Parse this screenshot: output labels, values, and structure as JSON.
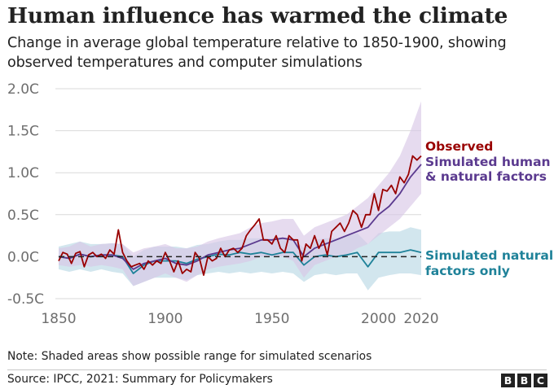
{
  "title": "Human influence has warmed the climate",
  "subtitle": "Change in average global temperature relative to 1850-1900, showing observed temperatures and computer simulations",
  "note": "Note: Shaded areas show possible range for simulated scenarios",
  "source": "Source: IPCC, 2021: Summary for Policymakers",
  "logo": [
    "B",
    "B",
    "C"
  ],
  "chart_data": {
    "type": "line",
    "title": "Human influence has warmed the climate",
    "subtitle": "Change in average global temperature relative to 1850-1900, showing observed temperatures and computer simulations",
    "xlim": [
      1850,
      2020
    ],
    "ylim": [
      -0.5,
      2.0
    ],
    "x_ticks": [
      1850,
      1900,
      1950,
      2000,
      2020
    ],
    "x_tick_labels": [
      "1850",
      "1900",
      "1950",
      "2000",
      "2020"
    ],
    "y_ticks": [
      -0.5,
      0.0,
      0.5,
      1.0,
      1.5,
      2.0
    ],
    "y_tick_labels": [
      "-0.5C",
      "0.0C",
      "0.5C",
      "1.0C",
      "1.5C",
      "2.0C"
    ],
    "grid": "horizontal",
    "reference_line": {
      "y": 0,
      "style": "dashed"
    },
    "colors": {
      "observed": "#990000",
      "human": "#5b3a8f",
      "human_band": "#d9c8e6",
      "natural": "#1f8299",
      "natural_band": "#c3dde8",
      "grid": "#d9d9d9",
      "axis_text": "#6e6e6e"
    },
    "series": [
      {
        "name": "Observed",
        "color": "#990000",
        "x": [
          1850,
          1852,
          1854,
          1856,
          1858,
          1860,
          1862,
          1864,
          1866,
          1868,
          1870,
          1872,
          1874,
          1876,
          1878,
          1880,
          1882,
          1884,
          1886,
          1888,
          1890,
          1892,
          1894,
          1896,
          1898,
          1900,
          1902,
          1904,
          1906,
          1908,
          1910,
          1912,
          1914,
          1916,
          1918,
          1920,
          1922,
          1924,
          1926,
          1928,
          1930,
          1932,
          1934,
          1936,
          1938,
          1940,
          1942,
          1944,
          1946,
          1948,
          1950,
          1952,
          1954,
          1956,
          1958,
          1960,
          1962,
          1964,
          1966,
          1968,
          1970,
          1972,
          1974,
          1976,
          1978,
          1980,
          1982,
          1984,
          1986,
          1988,
          1990,
          1992,
          1994,
          1996,
          1998,
          2000,
          2002,
          2004,
          2006,
          2008,
          2010,
          2012,
          2014,
          2016,
          2018,
          2020
        ],
        "y": [
          -0.05,
          0.05,
          0.03,
          -0.08,
          0.04,
          0.06,
          -0.12,
          0.02,
          0.05,
          0.0,
          0.03,
          -0.02,
          0.08,
          0.03,
          0.32,
          0.05,
          -0.05,
          -0.12,
          -0.1,
          -0.08,
          -0.15,
          -0.05,
          -0.1,
          -0.05,
          -0.08,
          0.05,
          -0.05,
          -0.18,
          -0.05,
          -0.2,
          -0.15,
          -0.18,
          0.05,
          -0.02,
          -0.22,
          0.0,
          -0.05,
          -0.02,
          0.1,
          0.0,
          0.08,
          0.1,
          0.05,
          0.1,
          0.25,
          0.32,
          0.38,
          0.45,
          0.2,
          0.2,
          0.15,
          0.25,
          0.1,
          0.05,
          0.25,
          0.2,
          0.2,
          -0.05,
          0.15,
          0.1,
          0.25,
          0.1,
          0.2,
          0.02,
          0.3,
          0.35,
          0.4,
          0.3,
          0.4,
          0.55,
          0.5,
          0.35,
          0.5,
          0.5,
          0.75,
          0.55,
          0.8,
          0.78,
          0.85,
          0.75,
          0.95,
          0.88,
          0.98,
          1.2,
          1.15,
          1.2
        ]
      },
      {
        "name": "Simulated human & natural factors",
        "color": "#5b3a8f",
        "x": [
          1850,
          1855,
          1860,
          1865,
          1870,
          1875,
          1880,
          1885,
          1890,
          1895,
          1900,
          1905,
          1910,
          1915,
          1920,
          1925,
          1930,
          1935,
          1940,
          1945,
          1950,
          1955,
          1960,
          1965,
          1970,
          1975,
          1980,
          1985,
          1990,
          1995,
          2000,
          2005,
          2010,
          2015,
          2020
        ],
        "y": [
          0.0,
          -0.02,
          0.03,
          0.0,
          0.02,
          0.02,
          -0.02,
          -0.15,
          -0.08,
          -0.05,
          -0.02,
          -0.08,
          -0.1,
          -0.05,
          0.02,
          0.05,
          0.08,
          0.1,
          0.15,
          0.2,
          0.2,
          0.22,
          0.2,
          0.0,
          0.1,
          0.15,
          0.2,
          0.25,
          0.3,
          0.35,
          0.5,
          0.6,
          0.75,
          0.95,
          1.1
        ],
        "band_low": [
          -0.1,
          -0.12,
          -0.1,
          -0.12,
          -0.1,
          -0.12,
          -0.15,
          -0.35,
          -0.3,
          -0.25,
          -0.2,
          -0.25,
          -0.3,
          -0.22,
          -0.15,
          -0.12,
          -0.1,
          -0.08,
          -0.05,
          0.0,
          0.0,
          0.0,
          -0.05,
          -0.25,
          -0.1,
          -0.05,
          0.0,
          0.02,
          0.1,
          0.15,
          0.25,
          0.35,
          0.45,
          0.6,
          0.75
        ],
        "band_high": [
          0.1,
          0.12,
          0.18,
          0.12,
          0.15,
          0.16,
          0.15,
          0.05,
          0.1,
          0.12,
          0.15,
          0.1,
          0.1,
          0.12,
          0.18,
          0.22,
          0.25,
          0.28,
          0.35,
          0.4,
          0.42,
          0.45,
          0.45,
          0.25,
          0.35,
          0.4,
          0.45,
          0.5,
          0.6,
          0.7,
          0.85,
          1.0,
          1.2,
          1.5,
          1.85
        ]
      },
      {
        "name": "Simulated natural factors only",
        "color": "#1f8299",
        "x": [
          1850,
          1855,
          1860,
          1865,
          1870,
          1875,
          1880,
          1885,
          1890,
          1895,
          1900,
          1905,
          1910,
          1915,
          1920,
          1925,
          1930,
          1935,
          1940,
          1945,
          1950,
          1955,
          1960,
          1965,
          1970,
          1975,
          1980,
          1985,
          1990,
          1995,
          2000,
          2005,
          2010,
          2015,
          2020
        ],
        "y": [
          0.0,
          -0.02,
          0.03,
          0.0,
          0.02,
          0.02,
          0.0,
          -0.2,
          -0.1,
          -0.05,
          -0.05,
          -0.05,
          -0.08,
          -0.03,
          0.0,
          0.03,
          0.02,
          0.05,
          0.03,
          0.05,
          0.02,
          0.05,
          0.05,
          -0.1,
          0.0,
          0.02,
          0.0,
          0.02,
          0.05,
          -0.12,
          0.05,
          0.05,
          0.05,
          0.08,
          0.05
        ],
        "band_low": [
          -0.15,
          -0.18,
          -0.15,
          -0.18,
          -0.15,
          -0.18,
          -0.2,
          -0.35,
          -0.3,
          -0.25,
          -0.25,
          -0.25,
          -0.28,
          -0.22,
          -0.2,
          -0.18,
          -0.2,
          -0.18,
          -0.2,
          -0.18,
          -0.2,
          -0.18,
          -0.2,
          -0.3,
          -0.22,
          -0.2,
          -0.22,
          -0.2,
          -0.2,
          -0.4,
          -0.25,
          -0.22,
          -0.2,
          -0.2,
          -0.22
        ],
        "band_high": [
          0.12,
          0.15,
          0.18,
          0.15,
          0.15,
          0.16,
          0.15,
          0.0,
          0.08,
          0.12,
          0.12,
          0.12,
          0.1,
          0.14,
          0.15,
          0.18,
          0.2,
          0.2,
          0.22,
          0.22,
          0.2,
          0.22,
          0.22,
          0.1,
          0.2,
          0.22,
          0.22,
          0.25,
          0.28,
          0.15,
          0.28,
          0.3,
          0.3,
          0.35,
          0.32
        ]
      }
    ],
    "annotations": [
      {
        "text": "Observed",
        "color": "#990000"
      },
      {
        "text": "Simulated human",
        "color": "#5b3a8f"
      },
      {
        "text": "& natural factors",
        "color": "#5b3a8f"
      },
      {
        "text": "Simulated natural",
        "color": "#1f8299"
      },
      {
        "text": "factors only",
        "color": "#1f8299"
      }
    ]
  }
}
